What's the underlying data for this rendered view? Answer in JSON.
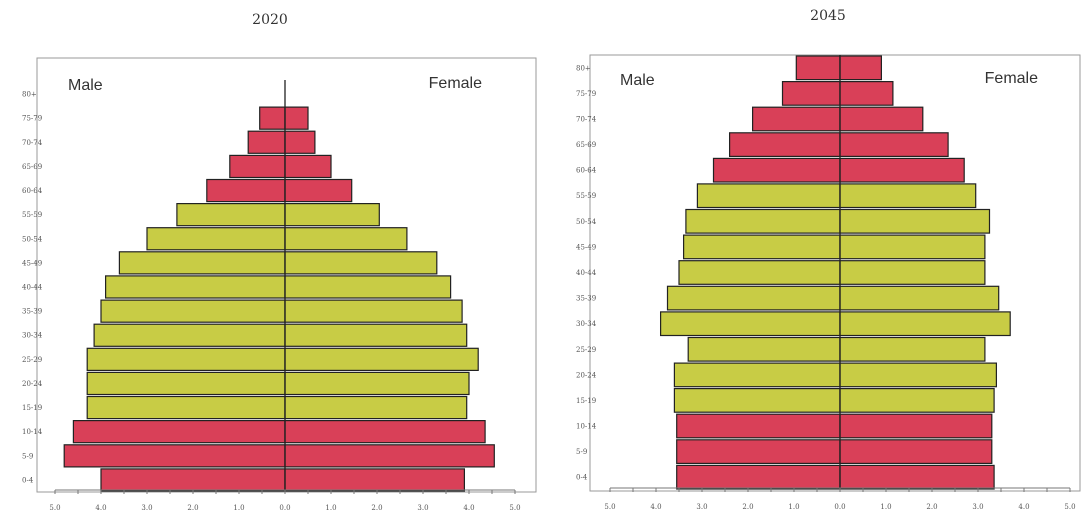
{
  "chart_data": [
    {
      "type": "bar",
      "orientation": "horizontal",
      "title": "2020",
      "male_label": "Male",
      "female_label": "Female",
      "categories": [
        "0-4",
        "5-9",
        "10-14",
        "15-19",
        "20-24",
        "25-29",
        "30-34",
        "35-39",
        "40-44",
        "45-49",
        "50-54",
        "55-59",
        "60-64",
        "65-69",
        "70-74",
        "75-79",
        "80+"
      ],
      "series": [
        {
          "name": "Male",
          "values": [
            4.0,
            4.8,
            4.6,
            4.3,
            4.3,
            4.3,
            4.15,
            4.0,
            3.9,
            3.6,
            3.0,
            2.35,
            1.7,
            1.2,
            0.8,
            0.55,
            0
          ]
        },
        {
          "name": "Female",
          "values": [
            3.9,
            4.55,
            4.35,
            3.95,
            4.0,
            4.2,
            3.95,
            3.85,
            3.6,
            3.3,
            2.65,
            2.05,
            1.45,
            1.0,
            0.65,
            0.5,
            0
          ]
        }
      ],
      "colors": {
        "red_band": "#d94058",
        "yellow_band": "#c8cc45",
        "red_age_groups": [
          "0-4",
          "5-9",
          "10-14",
          "60-64",
          "65-69",
          "70-74",
          "75-79",
          "80+"
        ]
      },
      "xlim": [
        -5.0,
        5.0
      ],
      "x_ticks": [
        "5.0",
        "4.0",
        "3.0",
        "2.0",
        "1.0",
        "0.0",
        "1.0",
        "2.0",
        "3.0",
        "4.0",
        "5.0"
      ]
    },
    {
      "type": "bar",
      "orientation": "horizontal",
      "title": "2045",
      "male_label": "Male",
      "female_label": "Female",
      "categories": [
        "0-4",
        "5-9",
        "10-14",
        "15-19",
        "20-24",
        "25-29",
        "30-34",
        "35-39",
        "40-44",
        "45-49",
        "50-54",
        "55-59",
        "60-64",
        "65-69",
        "70-74",
        "75-79",
        "80+"
      ],
      "series": [
        {
          "name": "Male",
          "values": [
            3.55,
            3.55,
            3.55,
            3.6,
            3.6,
            3.3,
            3.9,
            3.75,
            3.5,
            3.4,
            3.35,
            3.1,
            2.75,
            2.4,
            1.9,
            1.25,
            0.95
          ]
        },
        {
          "name": "Female",
          "values": [
            3.35,
            3.3,
            3.3,
            3.35,
            3.4,
            3.15,
            3.7,
            3.45,
            3.15,
            3.15,
            3.25,
            2.95,
            2.7,
            2.35,
            1.8,
            1.15,
            0.9
          ]
        }
      ],
      "colors": {
        "red_band": "#d94058",
        "yellow_band": "#c8cc45",
        "red_age_groups": [
          "0-4",
          "5-9",
          "10-14",
          "60-64",
          "65-69",
          "70-74",
          "75-79",
          "80+"
        ]
      },
      "xlim": [
        -5.0,
        5.0
      ],
      "x_ticks": [
        "5.0",
        "4.0",
        "3.0",
        "2.0",
        "1.0",
        "0.0",
        "1.0",
        "2.0",
        "3.0",
        "4.0",
        "5.0"
      ]
    }
  ]
}
